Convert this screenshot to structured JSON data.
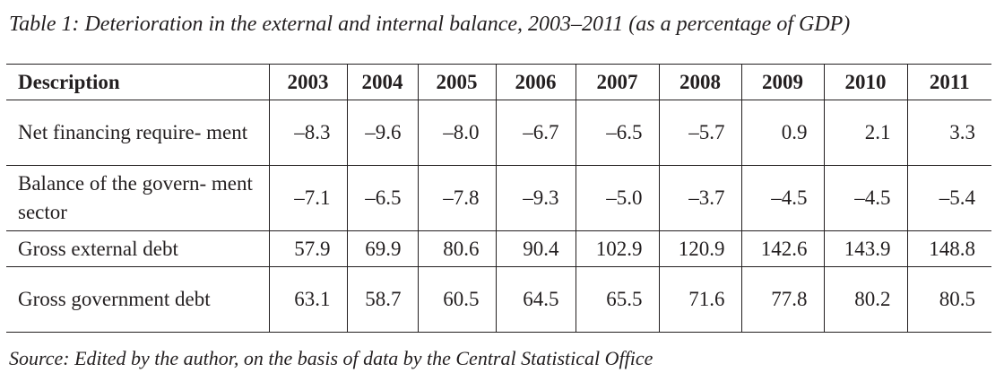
{
  "title": "Table 1: Deterioration in the external and internal balance, 2003–2011 (as a percentage of GDP)",
  "columns": [
    "Description",
    "2003",
    "2004",
    "2005",
    "2006",
    "2007",
    "2008",
    "2009",
    "2010",
    "2011"
  ],
  "rows": [
    {
      "label": "Net financing requirement",
      "label_display": "Net financing require- ment",
      "values": [
        "–8.3",
        "–9.6",
        "–8.0",
        "–6.7",
        "–6.5",
        "–5.7",
        "0.9",
        "2.1",
        "3.3"
      ]
    },
    {
      "label": "Balance of the government sector",
      "label_display": "Balance of the govern- ment sector",
      "values": [
        "–7.1",
        "–6.5",
        "–7.8",
        "–9.3",
        "–5.0",
        "–3.7",
        "–4.5",
        "–4.5",
        "–5.4"
      ]
    },
    {
      "label": "Gross external debt",
      "label_display": "Gross external debt",
      "values": [
        "57.9",
        "69.9",
        "80.6",
        "90.4",
        "102.9",
        "120.9",
        "142.6",
        "143.9",
        "148.8"
      ]
    },
    {
      "label": "Gross government debt",
      "label_display": "Gross government debt",
      "values": [
        "63.1",
        "58.7",
        "60.5",
        "64.5",
        "65.5",
        "71.6",
        "77.8",
        "80.2",
        "80.5"
      ]
    }
  ],
  "source": "Source: Edited by the author, on the basis of data by the Central Statistical Office"
}
